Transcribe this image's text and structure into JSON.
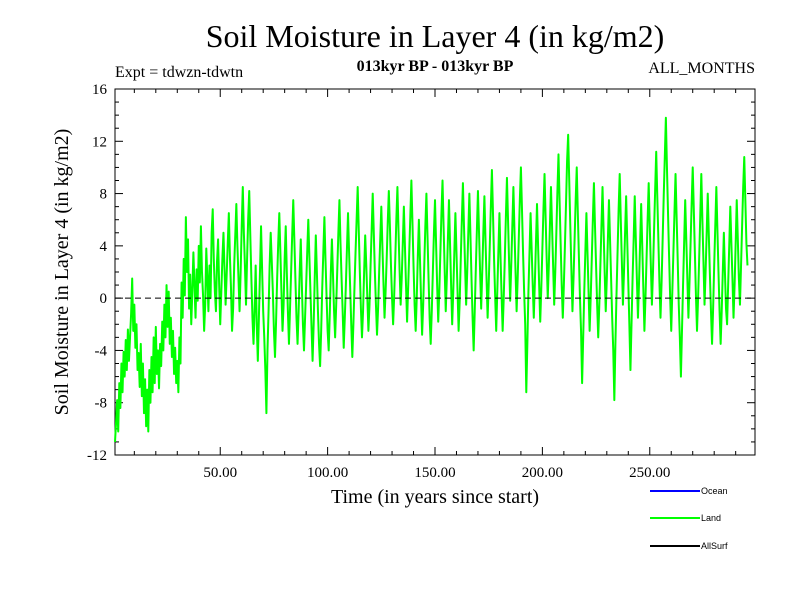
{
  "chart_data": {
    "type": "line",
    "title": "Soil Moisture in Layer 4 (in kg/m2)",
    "expt_label": "Expt = tdwzn-tdwtn",
    "period_label": "013kyr BP - 013kyr BP",
    "months_label": "ALL_MONTHS",
    "xlabel": "Time (in years since start)",
    "ylabel": "Soil Moisture in Layer 4 (in kg/m2)",
    "xlim": [
      1,
      299
    ],
    "ylim": [
      -12,
      16
    ],
    "x_ticks": [
      50,
      100,
      150,
      200,
      250
    ],
    "x_tick_labels": [
      "50.00",
      "100.00",
      "150.00",
      "200.00",
      "250.00"
    ],
    "y_ticks": [
      -12,
      -8,
      -4,
      0,
      4,
      8,
      12,
      16
    ],
    "y_tick_labels": [
      "-12",
      "-8",
      "-4",
      "0",
      "4",
      "8",
      "12",
      "16"
    ],
    "zero_line": {
      "y": 0,
      "style": "dashed"
    },
    "series": [
      {
        "name": "Ocean",
        "color": "#0000ff",
        "values": []
      },
      {
        "name": "Land",
        "color": "#00ff00",
        "x_start": 1,
        "x_step": 0.5,
        "values": [
          -11.0,
          -9.5,
          -7.8,
          -10.2,
          -6.5,
          -8.4,
          -5.0,
          -7.2,
          -4.1,
          -6.0,
          -3.2,
          -5.5,
          -2.4,
          -4.8,
          -3.0,
          -1.2,
          1.5,
          -2.5,
          -0.5,
          -3.8,
          -2.0,
          -5.5,
          -4.2,
          -6.8,
          -3.5,
          -7.5,
          -5.0,
          -8.8,
          -6.2,
          -9.8,
          -7.0,
          -10.2,
          -5.5,
          -8.0,
          -4.5,
          -7.2,
          -3.0,
          -6.5,
          -2.2,
          -5.8,
          -4.0,
          -6.9,
          -3.5,
          -5.2,
          -1.8,
          -4.0,
          -0.5,
          -3.0,
          1.0,
          -2.2,
          0.5,
          -3.5,
          -1.5,
          -4.5,
          -2.5,
          -5.8,
          -3.8,
          -6.5,
          -4.8,
          -7.2,
          -3.0,
          -5.0,
          1.2,
          -1.5,
          3.0,
          0.2,
          6.2,
          2.0,
          4.5,
          -0.8,
          1.8,
          -2.0,
          0.5,
          3.5,
          1.0,
          -1.5,
          2.2,
          -0.2,
          4.0,
          1.2,
          5.5,
          2.0,
          0.2,
          -2.5,
          -0.5,
          3.8,
          1.5,
          -1.0,
          2.5,
          0.0,
          5.0,
          6.8,
          3.0,
          0.5,
          -1.0,
          2.8,
          4.5,
          1.0,
          -2.0,
          0.5,
          3.0,
          5.0,
          2.2,
          -0.5,
          1.8,
          4.2,
          6.5,
          3.2,
          0.8,
          -2.5,
          -0.8,
          2.5,
          4.8,
          7.2,
          4.0,
          1.5,
          -1.0,
          2.0,
          5.5,
          8.5,
          5.0,
          2.5,
          -0.5,
          3.0,
          6.0,
          8.2,
          4.8,
          1.5,
          -1.5,
          -3.5,
          -0.8,
          2.5,
          -2.0,
          -4.8,
          -1.5,
          2.0,
          5.5,
          2.2,
          -1.0,
          -3.0,
          -5.5,
          -8.8,
          -4.0,
          -1.0,
          2.5,
          5.0,
          2.8,
          0.5,
          -2.5,
          -4.5,
          -1.8,
          1.5,
          4.2,
          6.5,
          3.5,
          0.5,
          -2.5,
          -0.5,
          3.0,
          5.5,
          2.0,
          -1.0,
          -3.5,
          -0.8,
          2.0,
          4.8,
          7.5,
          4.5,
          1.5,
          -1.5,
          -3.5,
          -1.0,
          2.0,
          4.5,
          1.0,
          -2.0,
          -4.0,
          -1.5,
          1.0,
          3.5,
          6.0,
          3.2,
          0.5,
          -2.2,
          -4.8,
          -2.0,
          1.5,
          4.8,
          2.0,
          -1.0,
          -3.5,
          -5.2,
          -2.5,
          0.8,
          3.5,
          6.2,
          3.0,
          0.2,
          -2.5,
          -4.0,
          -1.2,
          2.0,
          4.5,
          1.8,
          -1.0,
          -3.0,
          -0.5,
          2.2,
          5.0,
          7.5,
          4.2,
          1.5,
          -1.0,
          -3.8,
          -1.5,
          1.0,
          3.8,
          6.5,
          3.5,
          0.8,
          -2.0,
          -4.5,
          -2.0,
          0.8,
          3.5,
          6.0,
          8.5,
          5.2,
          2.0,
          -0.8,
          -3.0,
          -1.0,
          2.0,
          4.8,
          2.5,
          0.0,
          -2.5,
          -0.5,
          2.5,
          5.2,
          8.0,
          5.0,
          2.0,
          -0.5,
          -2.8,
          -0.8,
          2.0,
          4.5,
          7.0,
          4.0,
          1.2,
          -1.5,
          0.5,
          3.0,
          5.8,
          8.2,
          5.5,
          2.5,
          0.0,
          -2.0,
          0.2,
          3.0,
          6.0,
          8.5,
          5.2,
          2.2,
          -0.5,
          1.5,
          4.2,
          7.0,
          4.0,
          1.0,
          -1.8,
          0.8,
          3.5,
          6.2,
          9.0,
          5.8,
          2.5,
          -0.5,
          -2.5,
          0.0,
          3.2,
          6.0,
          3.0,
          0.0,
          -2.8,
          -0.5,
          2.5,
          5.5,
          8.0,
          4.8,
          1.5,
          -1.5,
          -3.5,
          -1.0,
          2.0,
          5.0,
          7.5,
          4.2,
          1.0,
          -1.8,
          0.5,
          3.5,
          6.5,
          9.0,
          5.5,
          2.2,
          -1.0,
          1.5,
          4.5,
          7.5,
          4.2,
          1.0,
          -2.0,
          0.5,
          3.5,
          6.5,
          3.5,
          0.5,
          -2.5,
          -0.2,
          3.0,
          6.0,
          8.8,
          5.5,
          2.5,
          -0.5,
          2.0,
          5.0,
          8.0,
          4.8,
          1.5,
          -1.5,
          -4.0,
          -1.0,
          2.2,
          5.2,
          8.2,
          5.0,
          2.0,
          -0.8,
          2.0,
          5.0,
          7.8,
          4.5,
          1.5,
          -1.5,
          1.0,
          4.0,
          7.0,
          9.8,
          6.5,
          3.0,
          0.2,
          -2.5,
          0.5,
          3.5,
          6.5,
          3.2,
          0.2,
          -2.5,
          0.0,
          3.0,
          6.2,
          9.2,
          6.0,
          2.8,
          -0.2,
          2.5,
          5.5,
          8.5,
          5.2,
          2.0,
          -1.0,
          1.5,
          4.5,
          7.5,
          10.0,
          6.8,
          3.5,
          0.5,
          -2.0,
          -7.2,
          -3.5,
          0.5,
          3.5,
          6.5,
          3.8,
          1.0,
          -1.5,
          1.2,
          4.2,
          7.2,
          4.0,
          1.0,
          -1.8,
          0.8,
          3.8,
          6.8,
          9.5,
          6.2,
          3.0,
          0.0,
          2.5,
          5.5,
          8.5,
          5.5,
          2.5,
          -0.5,
          2.0,
          5.0,
          8.2,
          11.0,
          7.5,
          4.2,
          1.0,
          -1.5,
          1.0,
          4.0,
          7.2,
          10.5,
          12.5,
          9.0,
          5.5,
          2.2,
          -1.0,
          1.5,
          4.5,
          7.5,
          10.0,
          6.5,
          3.2,
          0.0,
          -2.5,
          -6.5,
          -3.0,
          0.5,
          3.5,
          6.5,
          3.5,
          0.5,
          -2.5,
          0.0,
          3.0,
          6.0,
          8.8,
          5.5,
          2.5,
          -0.5,
          -3.0,
          -0.5,
          2.5,
          5.5,
          8.5,
          5.2,
          2.0,
          -1.0,
          1.5,
          4.5,
          7.5,
          4.5,
          1.5,
          -1.5,
          -4.0,
          -7.8,
          -3.5,
          0.2,
          3.5,
          6.8,
          9.5,
          6.0,
          2.8,
          -0.5,
          2.0,
          5.0,
          7.8,
          4.5,
          1.2,
          -2.0,
          -5.5,
          -2.0,
          1.5,
          4.5,
          7.8,
          4.5,
          1.5,
          -1.5,
          1.2,
          4.2,
          7.2,
          4.0,
          0.8,
          -2.5,
          0.0,
          3.0,
          6.0,
          8.8,
          5.5,
          2.5,
          -0.5,
          2.0,
          5.2,
          8.2,
          11.2,
          7.8,
          4.5,
          1.2,
          -1.5,
          1.2,
          4.5,
          7.8,
          10.8,
          13.8,
          10.0,
          6.5,
          3.2,
          0.0,
          -2.5,
          0.5,
          3.5,
          6.5,
          9.5,
          6.2,
          3.0,
          -0.5,
          -3.0,
          -6.0,
          -2.5,
          1.0,
          4.2,
          7.5,
          4.5,
          1.5,
          -1.5,
          1.2,
          4.2,
          7.2,
          10.0,
          6.8,
          3.5,
          0.2,
          -2.5,
          0.0,
          3.0,
          6.2,
          9.5,
          6.0,
          2.8,
          -0.5,
          2.0,
          5.0,
          8.0,
          4.8,
          1.8,
          -1.0,
          -3.5,
          -0.8,
          2.5,
          5.5,
          8.5,
          5.2,
          2.0,
          -1.0,
          -3.5,
          -1.0,
          2.0,
          5.0,
          2.0,
          -0.8,
          -2.0,
          1.0,
          4.0,
          7.0,
          4.2,
          1.5,
          -1.5,
          1.0,
          4.2,
          7.5,
          4.5,
          1.5,
          -0.5,
          2.5,
          5.5,
          8.5,
          10.8,
          7.5,
          4.2,
          2.5
        ]
      },
      {
        "name": "AllSurf",
        "color": "#000000",
        "values": []
      }
    ],
    "legend": {
      "placement": "bottom-right",
      "entries": [
        {
          "label": "Ocean",
          "color": "#0000ff"
        },
        {
          "label": "Land",
          "color": "#00ff00"
        },
        {
          "label": "AllSurf",
          "color": "#000000"
        }
      ]
    },
    "grid": false
  }
}
